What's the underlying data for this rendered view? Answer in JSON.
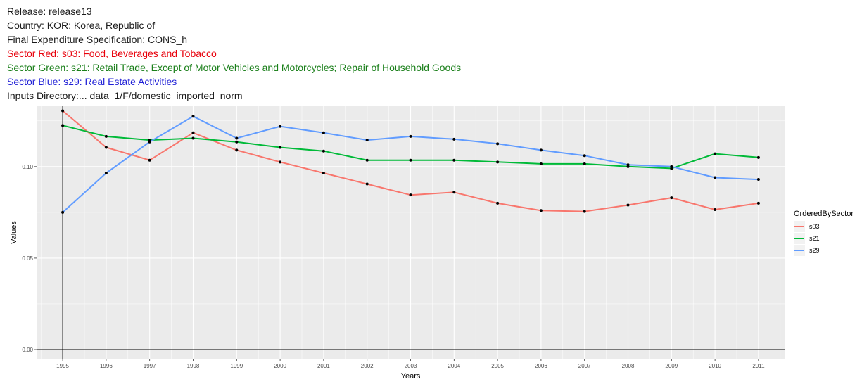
{
  "header": {
    "release": "Release: release13",
    "country": "Country: KOR: Korea, Republic of",
    "spec": "Final Expenditure Specification: CONS_h",
    "sector_red": "Sector Red: s03: Food, Beverages and Tobacco",
    "sector_green": "Sector Green: s21: Retail Trade, Except of Motor Vehicles and Motorcycles; Repair of Household Goods",
    "sector_blue": "Sector Blue: s29: Real Estate Activities",
    "inputs_dir": "Inputs Directory:... data_1/F/domestic_imported_norm"
  },
  "colors": {
    "red_text": "#e8000b",
    "green_text": "#1a7f1a",
    "blue_text": "#1f1fd6",
    "black_text": "#1a1a1a",
    "panel_bg": "#ebebeb",
    "grid": "#ffffff"
  },
  "chart_data": {
    "type": "line",
    "xlabel": "Years",
    "ylabel": "Values",
    "x": [
      1995,
      1996,
      1997,
      1998,
      1999,
      2000,
      2001,
      2002,
      2003,
      2004,
      2005,
      2006,
      2007,
      2008,
      2009,
      2010,
      2011
    ],
    "x_tick_labels": [
      "1995",
      "1996",
      "1997",
      "1998",
      "1999",
      "2000",
      "2001",
      "2002",
      "2003",
      "2004",
      "2005",
      "2006",
      "2007",
      "2008",
      "2009",
      "2010",
      "2011"
    ],
    "ylim": [
      -0.005,
      0.133
    ],
    "y_ticks": [
      0.0,
      0.05,
      0.1
    ],
    "y_tick_labels": [
      "0.00",
      "0.05",
      "0.10"
    ],
    "grid": true,
    "legend_title": "OrderedBySector",
    "legend_position": "right",
    "series": [
      {
        "name": "s03",
        "color": "#f8766d",
        "values": [
          0.1305,
          0.1105,
          0.1035,
          0.1185,
          0.109,
          0.1025,
          0.0965,
          0.0905,
          0.0845,
          0.086,
          0.08,
          0.076,
          0.0755,
          0.079,
          0.083,
          0.0765,
          0.08
        ]
      },
      {
        "name": "s21",
        "color": "#00ba38",
        "values": [
          0.1225,
          0.1165,
          0.1145,
          0.1155,
          0.1135,
          0.1105,
          0.1085,
          0.1035,
          0.1035,
          0.1035,
          0.1025,
          0.1015,
          0.1015,
          0.1,
          0.099,
          0.107,
          0.105
        ]
      },
      {
        "name": "s29",
        "color": "#619cff",
        "values": [
          0.075,
          0.0965,
          0.1135,
          0.1275,
          0.1155,
          0.122,
          0.1185,
          0.1145,
          0.1165,
          0.115,
          0.1125,
          0.109,
          0.106,
          0.101,
          0.1,
          0.094,
          0.093
        ]
      }
    ]
  }
}
